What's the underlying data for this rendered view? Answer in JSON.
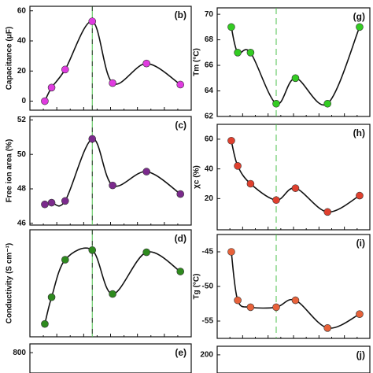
{
  "chart_data": [
    {
      "type": "line",
      "panel_label": "(b)",
      "y_label": "Capacitance (μF)",
      "color": "#e03be0",
      "x": [
        0,
        2.5,
        7.5,
        17.5,
        25,
        37.5,
        50
      ],
      "values": [
        0,
        9,
        21,
        53,
        12,
        25,
        11
      ],
      "xlim": [
        -5.5,
        54
      ],
      "ylim": [
        -6,
        63
      ],
      "yticks": [
        0,
        20,
        40,
        60
      ]
    },
    {
      "type": "line",
      "panel_label": "(c)",
      "y_label": "Free ion area (%)",
      "color": "#7b2a8c",
      "x": [
        0,
        2.5,
        7.5,
        17.5,
        25,
        37.5,
        50
      ],
      "values": [
        47.1,
        47.2,
        47.3,
        50.9,
        48.2,
        49.0,
        47.7
      ],
      "xlim": [
        -5.5,
        54
      ],
      "ylim": [
        45.9,
        52.2
      ],
      "yticks": [
        46,
        48,
        50,
        52
      ]
    },
    {
      "type": "line",
      "panel_label": "(d)",
      "y_label": "Conductivity (S cm⁻¹)",
      "color": "#2e8a1e",
      "x": [
        0,
        2.5,
        7.5,
        17.5,
        25,
        37.5,
        50
      ],
      "values": [
        12,
        37,
        72,
        81,
        40,
        79,
        61
      ],
      "xlim": [
        -5.5,
        54
      ],
      "ylim": [
        0,
        100
      ],
      "yticks": []
    },
    {
      "type": "line",
      "panel_label": "(e)",
      "color": "#7b2a8c",
      "x": [],
      "values": [],
      "xlim": [
        -5.5,
        54
      ],
      "ylim": [
        0,
        880
      ],
      "yticks": [
        800
      ]
    },
    {
      "type": "line",
      "panel_label": "(g)",
      "y_label": "Tm (°C)",
      "color": "#33cc22",
      "x": [
        0,
        2.5,
        7.5,
        17.5,
        25,
        37.5,
        50
      ],
      "values": [
        69,
        67,
        67,
        63,
        65,
        63,
        69
      ],
      "xlim": [
        -5.5,
        54
      ],
      "ylim": [
        62,
        70.5
      ],
      "yticks": [
        62,
        64,
        66,
        68,
        70
      ]
    },
    {
      "type": "line",
      "panel_label": "(h)",
      "y_label": "χc (%)",
      "color": "#e0402e",
      "x": [
        0,
        2.5,
        7.5,
        17.5,
        25,
        37.5,
        50
      ],
      "values": [
        59,
        42,
        30,
        19,
        27,
        11,
        22
      ],
      "xlim": [
        -5.5,
        54
      ],
      "ylim": [
        -1,
        70
      ],
      "yticks": [
        20,
        40,
        60
      ]
    },
    {
      "type": "line",
      "panel_label": "(i)",
      "y_label": "Tg (°C)",
      "color": "#e8623a",
      "x": [
        0,
        2.5,
        7.5,
        17.5,
        25,
        37.5,
        50
      ],
      "values": [
        -45,
        -52,
        -53,
        -53,
        -52,
        -56,
        -54
      ],
      "xlim": [
        -5.5,
        54
      ],
      "ylim": [
        -57.5,
        -42.5
      ],
      "yticks": [
        -45,
        -50,
        -55
      ]
    },
    {
      "type": "line",
      "panel_label": "(j)",
      "color": "#33cc22",
      "x": [],
      "values": [],
      "xlim": [
        -5.5,
        54
      ],
      "ylim": [
        0,
        220
      ],
      "yticks": [
        200
      ]
    }
  ]
}
